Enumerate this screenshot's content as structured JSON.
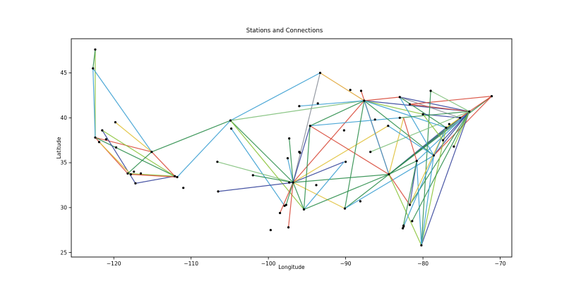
{
  "chart_data": {
    "type": "scatter",
    "title": "Stations and Connections",
    "xlabel": "Longitude",
    "ylabel": "Latitude",
    "xlim": [
      -125.5,
      -68.5
    ],
    "ylim": [
      24.5,
      48.8
    ],
    "xticks": [
      -120,
      -110,
      -100,
      -90,
      -80,
      -70
    ],
    "yticks": [
      25,
      30,
      35,
      40,
      45
    ],
    "grid": false,
    "stations": [
      [
        -122.4,
        47.6
      ],
      [
        -122.7,
        45.5
      ],
      [
        -122.4,
        37.8
      ],
      [
        -121.9,
        37.3
      ],
      [
        -121.5,
        38.6
      ],
      [
        -121.0,
        37.6
      ],
      [
        -119.8,
        39.5
      ],
      [
        -119.7,
        36.7
      ],
      [
        -118.2,
        33.8
      ],
      [
        -117.8,
        33.7
      ],
      [
        -117.2,
        32.7
      ],
      [
        -117.4,
        34.0
      ],
      [
        -116.5,
        33.8
      ],
      [
        -115.1,
        36.2
      ],
      [
        -112.1,
        33.5
      ],
      [
        -111.8,
        33.4
      ],
      [
        -111.0,
        32.2
      ],
      [
        -106.5,
        31.8
      ],
      [
        -106.6,
        35.1
      ],
      [
        -104.9,
        39.7
      ],
      [
        -104.8,
        38.8
      ],
      [
        -102.0,
        33.6
      ],
      [
        -99.7,
        27.5
      ],
      [
        -98.5,
        29.4
      ],
      [
        -97.9,
        30.2
      ],
      [
        -97.7,
        30.3
      ],
      [
        -97.5,
        35.5
      ],
      [
        -97.4,
        27.8
      ],
      [
        -97.3,
        32.8
      ],
      [
        -97.3,
        37.7
      ],
      [
        -96.8,
        32.8
      ],
      [
        -96.0,
        36.2
      ],
      [
        -96.0,
        41.3
      ],
      [
        -95.4,
        29.8
      ],
      [
        -94.6,
        39.1
      ],
      [
        -93.3,
        45.0
      ],
      [
        -93.6,
        41.6
      ],
      [
        -90.2,
        38.6
      ],
      [
        -90.1,
        29.9
      ],
      [
        -90.0,
        35.1
      ],
      [
        -89.4,
        43.1
      ],
      [
        -88.0,
        43.0
      ],
      [
        -87.6,
        41.9
      ],
      [
        -86.2,
        39.8
      ],
      [
        -86.8,
        36.2
      ],
      [
        -84.4,
        33.7
      ],
      [
        -84.5,
        39.1
      ],
      [
        -83.0,
        40.0
      ],
      [
        -83.0,
        42.3
      ],
      [
        -81.7,
        41.5
      ],
      [
        -81.7,
        30.3
      ],
      [
        -82.5,
        27.9
      ],
      [
        -80.8,
        35.2
      ],
      [
        -80.2,
        25.8
      ],
      [
        -80.0,
        40.4
      ],
      [
        -79.0,
        43.0
      ],
      [
        -78.6,
        35.8
      ],
      [
        -77.4,
        37.5
      ],
      [
        -77.0,
        38.9
      ],
      [
        -76.6,
        39.3
      ],
      [
        -75.2,
        40.0
      ],
      [
        -74.0,
        40.7
      ],
      [
        -71.1,
        42.4
      ],
      [
        -76.0,
        36.8
      ],
      [
        -82.5,
        28.0
      ],
      [
        -81.4,
        28.5
      ],
      [
        -82.6,
        27.7
      ],
      [
        -88.1,
        30.7
      ],
      [
        -93.8,
        32.5
      ],
      [
        -95.9,
        36.1
      ]
    ],
    "connections": [
      {
        "from": [
          -122.4,
          47.6
        ],
        "to": [
          -122.4,
          37.8
        ],
        "color": "#8cc43c"
      },
      {
        "from": [
          -122.4,
          47.6
        ],
        "to": [
          -122.7,
          45.5
        ],
        "color": "#2f8f4e"
      },
      {
        "from": [
          -122.7,
          45.5
        ],
        "to": [
          -122.4,
          37.8
        ],
        "color": "#3a9fd1"
      },
      {
        "from": [
          -122.7,
          45.5
        ],
        "to": [
          -115.1,
          36.2
        ],
        "color": "#3a9fd1"
      },
      {
        "from": [
          -122.4,
          37.8
        ],
        "to": [
          -115.1,
          36.2
        ],
        "color": "#d84a3a"
      },
      {
        "from": [
          -122.4,
          37.8
        ],
        "to": [
          -118.2,
          33.8
        ],
        "color": "#d84a3a"
      },
      {
        "from": [
          -122.4,
          37.8
        ],
        "to": [
          -112.1,
          33.5
        ],
        "color": "#2f8f4e"
      },
      {
        "from": [
          -121.5,
          38.6
        ],
        "to": [
          -117.2,
          32.7
        ],
        "color": "#34429a"
      },
      {
        "from": [
          -121.9,
          37.3
        ],
        "to": [
          -117.8,
          33.7
        ],
        "color": "#e0c13a"
      },
      {
        "from": [
          -121.5,
          38.6
        ],
        "to": [
          -112.1,
          33.5
        ],
        "color": "#8cc43c"
      },
      {
        "from": [
          -119.8,
          39.5
        ],
        "to": [
          -115.1,
          36.2
        ],
        "color": "#e0c13a"
      },
      {
        "from": [
          -118.2,
          33.8
        ],
        "to": [
          -112.1,
          33.5
        ],
        "color": "#8cc43c"
      },
      {
        "from": [
          -118.2,
          33.8
        ],
        "to": [
          -115.1,
          36.2
        ],
        "color": "#2f8f4e"
      },
      {
        "from": [
          -117.2,
          32.7
        ],
        "to": [
          -112.1,
          33.5
        ],
        "color": "#34429a"
      },
      {
        "from": [
          -117.8,
          33.7
        ],
        "to": [
          -111.8,
          33.4
        ],
        "color": "#d84a3a"
      },
      {
        "from": [
          -115.1,
          36.2
        ],
        "to": [
          -112.1,
          33.5
        ],
        "color": "#d84a3a"
      },
      {
        "from": [
          -115.1,
          36.2
        ],
        "to": [
          -104.9,
          39.7
        ],
        "color": "#2f8f4e"
      },
      {
        "from": [
          -111.8,
          33.4
        ],
        "to": [
          -104.9,
          39.7
        ],
        "color": "#3a9fd1"
      },
      {
        "from": [
          -104.9,
          39.7
        ],
        "to": [
          -93.3,
          45.0
        ],
        "color": "#3a9fd1"
      },
      {
        "from": [
          -104.9,
          39.7
        ],
        "to": [
          -96.8,
          32.8
        ],
        "color": "#2f8f4e"
      },
      {
        "from": [
          -104.9,
          39.7
        ],
        "to": [
          -95.4,
          29.8
        ],
        "color": "#8cc43c"
      },
      {
        "from": [
          -104.9,
          39.7
        ],
        "to": [
          -87.6,
          41.9
        ],
        "color": "#7fc07a"
      },
      {
        "from": [
          -104.8,
          38.8
        ],
        "to": [
          -97.9,
          30.2
        ],
        "color": "#3a9fd1"
      },
      {
        "from": [
          -106.6,
          35.1
        ],
        "to": [
          -96.8,
          32.8
        ],
        "color": "#7fc07a"
      },
      {
        "from": [
          -102.0,
          33.6
        ],
        "to": [
          -96.8,
          32.8
        ],
        "color": "#2f8f4e"
      },
      {
        "from": [
          -106.5,
          31.8
        ],
        "to": [
          -96.8,
          32.8
        ],
        "color": "#34429a"
      },
      {
        "from": [
          -93.3,
          45.0
        ],
        "to": [
          -87.6,
          41.9
        ],
        "color": "#e0a63a"
      },
      {
        "from": [
          -93.3,
          45.0
        ],
        "to": [
          -96.8,
          32.8
        ],
        "color": "#8a8f99"
      },
      {
        "from": [
          -96.8,
          32.8
        ],
        "to": [
          -87.6,
          41.9
        ],
        "color": "#d84a3a"
      },
      {
        "from": [
          -96.8,
          32.8
        ],
        "to": [
          -84.4,
          33.7
        ],
        "color": "#2f8f4e"
      },
      {
        "from": [
          -96.8,
          32.8
        ],
        "to": [
          -94.6,
          39.1
        ],
        "color": "#34429a"
      },
      {
        "from": [
          -96.8,
          32.8
        ],
        "to": [
          -90.1,
          29.9
        ],
        "color": "#e0c13a"
      },
      {
        "from": [
          -96.8,
          32.8
        ],
        "to": [
          -95.4,
          29.8
        ],
        "color": "#2f8f4e"
      },
      {
        "from": [
          -96.8,
          32.8
        ],
        "to": [
          -98.5,
          29.4
        ],
        "color": "#d84a3a"
      },
      {
        "from": [
          -96.8,
          32.8
        ],
        "to": [
          -97.4,
          27.8
        ],
        "color": "#d84a3a"
      },
      {
        "from": [
          -96.8,
          32.8
        ],
        "to": [
          -97.7,
          30.3
        ],
        "color": "#2f8f4e"
      },
      {
        "from": [
          -96.8,
          32.8
        ],
        "to": [
          -97.5,
          35.5
        ],
        "color": "#3a9fd1"
      },
      {
        "from": [
          -96.8,
          32.8
        ],
        "to": [
          -90.2,
          35.1
        ],
        "color": "#34429a"
      },
      {
        "from": [
          -97.3,
          37.7
        ],
        "to": [
          -96.8,
          32.8
        ],
        "color": "#2f8f4e"
      },
      {
        "from": [
          -96.8,
          32.8
        ],
        "to": [
          -84.5,
          39.1
        ],
        "color": "#e0c13a"
      },
      {
        "from": [
          -95.4,
          29.8
        ],
        "to": [
          -90.2,
          35.1
        ],
        "color": "#3a9fd1"
      },
      {
        "from": [
          -95.4,
          29.8
        ],
        "to": [
          -84.4,
          33.7
        ],
        "color": "#2f8f4e"
      },
      {
        "from": [
          -95.4,
          29.8
        ],
        "to": [
          -94.6,
          39.1
        ],
        "color": "#2f8f4e"
      },
      {
        "from": [
          -94.6,
          39.1
        ],
        "to": [
          -87.6,
          41.9
        ],
        "color": "#2f8f4e"
      },
      {
        "from": [
          -94.6,
          39.1
        ],
        "to": [
          -84.4,
          33.7
        ],
        "color": "#d84a3a"
      },
      {
        "from": [
          -94.6,
          39.1
        ],
        "to": [
          -83.0,
          40.0
        ],
        "color": "#3a9fd1"
      },
      {
        "from": [
          -96.0,
          41.3
        ],
        "to": [
          -87.6,
          41.9
        ],
        "color": "#3a9fd1"
      },
      {
        "from": [
          -88.0,
          43.0
        ],
        "to": [
          -84.4,
          33.7
        ],
        "color": "#d84a3a"
      },
      {
        "from": [
          -87.6,
          41.9
        ],
        "to": [
          -83.0,
          42.3
        ],
        "color": "#d84a3a"
      },
      {
        "from": [
          -87.6,
          41.9
        ],
        "to": [
          -74.0,
          40.7
        ],
        "color": "#34429a"
      },
      {
        "from": [
          -87.6,
          41.9
        ],
        "to": [
          -78.6,
          35.8
        ],
        "color": "#2f8f4e"
      },
      {
        "from": [
          -87.6,
          41.9
        ],
        "to": [
          -80.0,
          40.4
        ],
        "color": "#8cc43c"
      },
      {
        "from": [
          -87.6,
          41.9
        ],
        "to": [
          -90.1,
          29.9
        ],
        "color": "#2f8f4e"
      },
      {
        "from": [
          -87.6,
          41.9
        ],
        "to": [
          -84.4,
          33.7
        ],
        "color": "#3a9fd1"
      },
      {
        "from": [
          -87.6,
          41.9
        ],
        "to": [
          -77.0,
          38.9
        ],
        "color": "#3a9fd1"
      },
      {
        "from": [
          -90.1,
          29.9
        ],
        "to": [
          -84.4,
          33.7
        ],
        "color": "#2f8f4e"
      },
      {
        "from": [
          -90.1,
          29.9
        ],
        "to": [
          -78.6,
          35.8
        ],
        "color": "#3a9fd1"
      },
      {
        "from": [
          -84.4,
          33.7
        ],
        "to": [
          -74.0,
          40.7
        ],
        "color": "#34429a"
      },
      {
        "from": [
          -84.4,
          33.7
        ],
        "to": [
          -77.0,
          38.9
        ],
        "color": "#34429a"
      },
      {
        "from": [
          -84.4,
          33.7
        ],
        "to": [
          -75.2,
          40.0
        ],
        "color": "#2f8f4e"
      },
      {
        "from": [
          -84.4,
          33.7
        ],
        "to": [
          -80.8,
          35.2
        ],
        "color": "#2f8f4e"
      },
      {
        "from": [
          -84.4,
          33.7
        ],
        "to": [
          -81.7,
          30.3
        ],
        "color": "#d84a3a"
      },
      {
        "from": [
          -84.4,
          33.7
        ],
        "to": [
          -80.2,
          25.8
        ],
        "color": "#8cc43c"
      },
      {
        "from": [
          -84.4,
          33.7
        ],
        "to": [
          -82.5,
          40.0
        ],
        "color": "#e0c13a"
      },
      {
        "from": [
          -84.4,
          33.7
        ],
        "to": [
          -71.1,
          42.4
        ],
        "color": "#2f8f4e"
      },
      {
        "from": [
          -83.0,
          42.3
        ],
        "to": [
          -74.0,
          40.7
        ],
        "color": "#34429a"
      },
      {
        "from": [
          -83.0,
          42.3
        ],
        "to": [
          -77.0,
          38.9
        ],
        "color": "#2f8f4e"
      },
      {
        "from": [
          -83.0,
          42.3
        ],
        "to": [
          -78.6,
          35.8
        ],
        "color": "#3a9fd1"
      },
      {
        "from": [
          -83.0,
          42.3
        ],
        "to": [
          -75.2,
          40.0
        ],
        "color": "#8a8f99"
      },
      {
        "from": [
          -81.7,
          41.5
        ],
        "to": [
          -74.0,
          40.7
        ],
        "color": "#d84a3a"
      },
      {
        "from": [
          -81.7,
          41.5
        ],
        "to": [
          -71.1,
          42.4
        ],
        "color": "#d84a3a"
      },
      {
        "from": [
          -80.0,
          40.4
        ],
        "to": [
          -75.2,
          40.0
        ],
        "color": "#34429a"
      },
      {
        "from": [
          -79.0,
          43.0
        ],
        "to": [
          -74.0,
          40.7
        ],
        "color": "#7fc07a"
      },
      {
        "from": [
          -79.0,
          43.0
        ],
        "to": [
          -80.2,
          25.8
        ],
        "color": "#2f8f4e"
      },
      {
        "from": [
          -78.6,
          35.8
        ],
        "to": [
          -74.0,
          40.7
        ],
        "color": "#34429a"
      },
      {
        "from": [
          -78.6,
          35.8
        ],
        "to": [
          -71.1,
          42.4
        ],
        "color": "#d84a3a"
      },
      {
        "from": [
          -80.8,
          35.2
        ],
        "to": [
          -74.0,
          40.7
        ],
        "color": "#3a9fd1"
      },
      {
        "from": [
          -80.8,
          35.2
        ],
        "to": [
          -80.2,
          25.8
        ],
        "color": "#3a9fd1"
      },
      {
        "from": [
          -80.8,
          35.2
        ],
        "to": [
          -81.7,
          30.3
        ],
        "color": "#34429a"
      },
      {
        "from": [
          -81.7,
          30.3
        ],
        "to": [
          -74.0,
          40.7
        ],
        "color": "#2f8f4e"
      },
      {
        "from": [
          -81.7,
          30.3
        ],
        "to": [
          -77.0,
          38.9
        ],
        "color": "#e0c13a"
      },
      {
        "from": [
          -82.5,
          27.9
        ],
        "to": [
          -77.0,
          38.9
        ],
        "color": "#3a9fd1"
      },
      {
        "from": [
          -80.2,
          25.8
        ],
        "to": [
          -74.0,
          40.7
        ],
        "color": "#34429a"
      },
      {
        "from": [
          -80.2,
          25.8
        ],
        "to": [
          -77.0,
          38.9
        ],
        "color": "#8cc43c"
      },
      {
        "from": [
          -81.4,
          28.5
        ],
        "to": [
          -74.0,
          40.7
        ],
        "color": "#2f8f4e"
      },
      {
        "from": [
          -77.0,
          38.9
        ],
        "to": [
          -74.0,
          40.7
        ],
        "color": "#e0c13a"
      },
      {
        "from": [
          -75.2,
          40.0
        ],
        "to": [
          -71.1,
          42.4
        ],
        "color": "#d84a3a"
      },
      {
        "from": [
          -77.4,
          37.5
        ],
        "to": [
          -74.0,
          40.7
        ],
        "color": "#34429a"
      },
      {
        "from": [
          -76.0,
          36.8
        ],
        "to": [
          -74.0,
          40.7
        ],
        "color": "#8cc43c"
      },
      {
        "from": [
          -83.0,
          40.0
        ],
        "to": [
          -74.0,
          40.7
        ],
        "color": "#2f8f4e"
      },
      {
        "from": [
          -86.8,
          36.2
        ],
        "to": [
          -74.0,
          40.7
        ],
        "color": "#7fc07a"
      },
      {
        "from": [
          -84.5,
          39.1
        ],
        "to": [
          -78.6,
          35.8
        ],
        "color": "#3a9fd1"
      },
      {
        "from": [
          -80.0,
          40.4
        ],
        "to": [
          -77.4,
          37.5
        ],
        "color": "#8cc43c"
      },
      {
        "from": [
          -80.8,
          35.2
        ],
        "to": [
          -82.5,
          40.0
        ],
        "color": "#d84a3a"
      },
      {
        "from": [
          -82.6,
          27.7
        ],
        "to": [
          -80.8,
          35.2
        ],
        "color": "#2f8f4e"
      },
      {
        "from": [
          -80.2,
          25.8
        ],
        "to": [
          -78.6,
          35.8
        ],
        "color": "#3a9fd1"
      }
    ]
  }
}
